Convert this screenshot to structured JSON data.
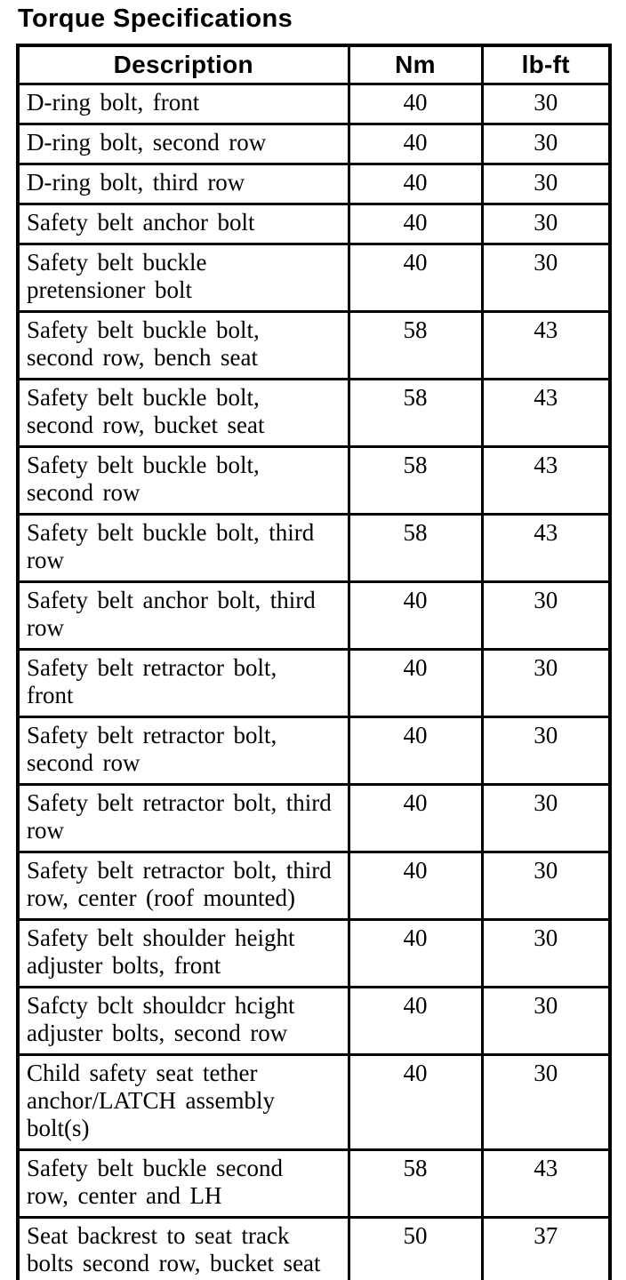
{
  "page": {
    "title": "Torque Specifications"
  },
  "colors": {
    "text": "#000000",
    "border": "#000000",
    "background": "#ffffff"
  },
  "table": {
    "columns": [
      {
        "key": "description",
        "label": "Description"
      },
      {
        "key": "nm",
        "label": "Nm"
      },
      {
        "key": "lbft",
        "label": "lb-ft"
      }
    ],
    "rows": [
      {
        "description": "D-ring bolt, front",
        "nm": "40",
        "lbft": "30"
      },
      {
        "description": "D-ring bolt, second row",
        "nm": "40",
        "lbft": "30"
      },
      {
        "description": "D-ring bolt, third row",
        "nm": "40",
        "lbft": "30"
      },
      {
        "description": "Safety belt anchor bolt",
        "nm": "40",
        "lbft": "30"
      },
      {
        "description": "Safety belt buckle\npretensioner bolt",
        "nm": "40",
        "lbft": "30"
      },
      {
        "description": "Safety belt buckle bolt,\nsecond row, bench seat",
        "nm": "58",
        "lbft": "43"
      },
      {
        "description": "Safety belt buckle bolt,\nsecond row, bucket seat",
        "nm": "58",
        "lbft": "43"
      },
      {
        "description": "Safety belt buckle bolt,\nsecond row",
        "nm": "58",
        "lbft": "43"
      },
      {
        "description": "Safety belt buckle bolt, third\nrow",
        "nm": "58",
        "lbft": "43"
      },
      {
        "description": "Safety belt anchor bolt, third\nrow",
        "nm": "40",
        "lbft": "30"
      },
      {
        "description": "Safety belt retractor bolt,\nfront",
        "nm": "40",
        "lbft": "30"
      },
      {
        "description": "Safety belt retractor bolt,\nsecond row",
        "nm": "40",
        "lbft": "30"
      },
      {
        "description": "Safety belt retractor bolt, third\nrow",
        "nm": "40",
        "lbft": "30"
      },
      {
        "description": "Safety belt retractor bolt, third\nrow, center (roof mounted)",
        "nm": "40",
        "lbft": "30"
      },
      {
        "description": "Safety belt shoulder height\nadjuster bolts, front",
        "nm": "40",
        "lbft": "30"
      },
      {
        "description": "Safcty bclt shouldcr hcight\nadjuster bolts, second row",
        "nm": "40",
        "lbft": "30"
      },
      {
        "description": "Child safety seat tether\nanchor/LATCH assembly\nbolt(s)",
        "nm": "40",
        "lbft": "30"
      },
      {
        "description": "Safety belt buckle second\nrow, center and LH",
        "nm": "58",
        "lbft": "43"
      },
      {
        "description": "Seat backrest to seat track\nbolts second row, bucket seat",
        "nm": "50",
        "lbft": "37"
      }
    ]
  }
}
